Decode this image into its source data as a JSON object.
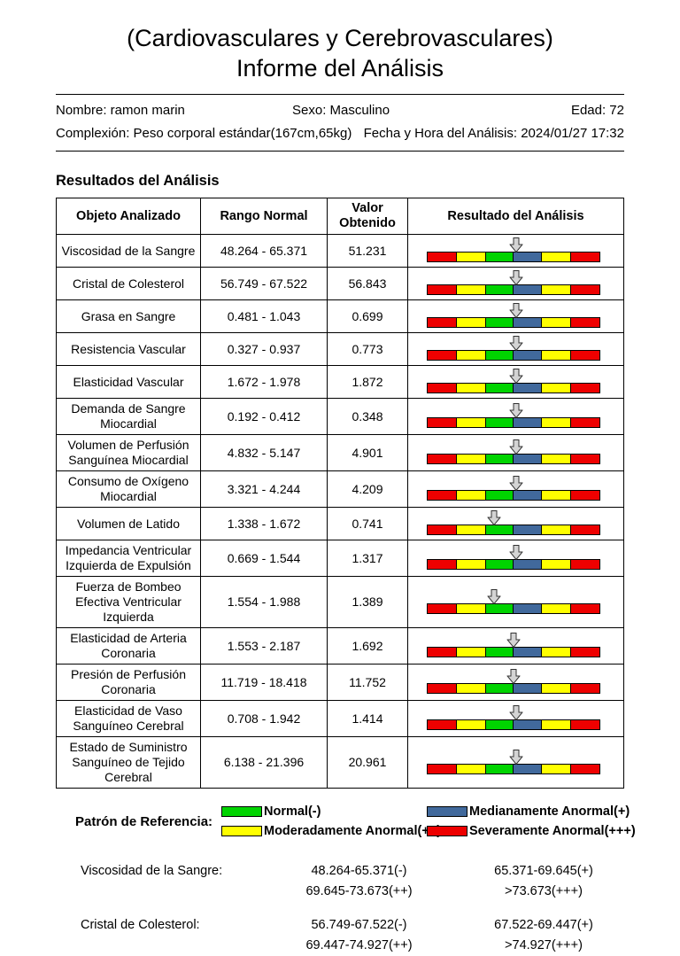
{
  "title": {
    "line1": "(Cardiovasculares y Cerebrovasculares)",
    "line2": "Informe del Análisis"
  },
  "patient": {
    "nombre": "Nombre: ramon marin",
    "sexo": "Sexo: Masculino",
    "edad": "Edad: 72",
    "complexion": "Complexión: Peso corporal estándar(167cm,65kg)",
    "fecha": "Fecha y Hora del Análisis: 2024/01/27 17:32"
  },
  "section_title": "Resultados del Análisis",
  "table": {
    "headers": [
      "Objeto Analizado",
      "Rango Normal",
      "Valor\nObtenido",
      "Resultado del Análisis"
    ],
    "bar": {
      "segments": [
        {
          "name": "severamente-anormal-izq",
          "color": "#ee0000",
          "width": 17
        },
        {
          "name": "moderadamente-anormal-izq",
          "color": "#ffff00",
          "width": 17
        },
        {
          "name": "normal",
          "color": "#00d400",
          "width": 16
        },
        {
          "name": "medianamente-anormal",
          "color": "#41699c",
          "width": 16
        },
        {
          "name": "moderadamente-anormal-der",
          "color": "#ffff00",
          "width": 17
        },
        {
          "name": "severamente-anormal-der",
          "color": "#ee0000",
          "width": 17
        }
      ]
    },
    "rows": [
      {
        "objeto": "Viscosidad de la Sangre",
        "rango": "48.264 - 65.371",
        "valor": "51.231",
        "arrow_pct": 50
      },
      {
        "objeto": "Cristal de Colesterol",
        "rango": "56.749 - 67.522",
        "valor": "56.843",
        "arrow_pct": 50
      },
      {
        "objeto": "Grasa en Sangre",
        "rango": "0.481 - 1.043",
        "valor": "0.699",
        "arrow_pct": 50
      },
      {
        "objeto": "Resistencia Vascular",
        "rango": "0.327 - 0.937",
        "valor": "0.773",
        "arrow_pct": 50
      },
      {
        "objeto": "Elasticidad Vascular",
        "rango": "1.672 - 1.978",
        "valor": "1.872",
        "arrow_pct": 50
      },
      {
        "objeto": "Demanda de Sangre Miocardial",
        "rango": "0.192 - 0.412",
        "valor": "0.348",
        "arrow_pct": 50
      },
      {
        "objeto": "Volumen de Perfusión Sanguínea Miocardial",
        "rango": "4.832 - 5.147",
        "valor": "4.901",
        "arrow_pct": 50
      },
      {
        "objeto": "Consumo de Oxígeno Miocardial",
        "rango": "3.321 - 4.244",
        "valor": "4.209",
        "arrow_pct": 50
      },
      {
        "objeto": "Volumen de Latido",
        "rango": "1.338 - 1.672",
        "valor": "0.741",
        "arrow_pct": 38
      },
      {
        "objeto": "Impedancia Ventricular Izquierda de Expulsión",
        "rango": "0.669 - 1.544",
        "valor": "1.317",
        "arrow_pct": 50
      },
      {
        "objeto": "Fuerza de Bombeo Efectiva Ventricular Izquierda",
        "rango": "1.554 - 1.988",
        "valor": "1.389",
        "arrow_pct": 38
      },
      {
        "objeto": "Elasticidad de Arteria Coronaria",
        "rango": "1.553 - 2.187",
        "valor": "1.692",
        "arrow_pct": 49
      },
      {
        "objeto": "Presión de Perfusión Coronaria",
        "rango": "11.719 - 18.418",
        "valor": "11.752",
        "arrow_pct": 49
      },
      {
        "objeto": "Elasticidad de Vaso Sanguíneo Cerebral",
        "rango": "0.708 - 1.942",
        "valor": "1.414",
        "arrow_pct": 50
      },
      {
        "objeto": "Estado de Suministro Sanguíneo de Tejido Cerebral",
        "rango": "6.138 - 21.396",
        "valor": "20.961",
        "arrow_pct": 50
      }
    ]
  },
  "legend": {
    "label": "Patrón de Referencia:",
    "items": [
      {
        "color": "#00d400",
        "text": "Normal(-)"
      },
      {
        "color": "#41699c",
        "text": "Medianamente Anormal(+)"
      },
      {
        "color": "#ffff00",
        "text": "Moderadamente Anormal(++)"
      },
      {
        "color": "#ee0000",
        "text": "Severamente Anormal(+++)"
      }
    ]
  },
  "references": [
    {
      "label": "Viscosidad de la Sangre:",
      "col1": [
        "48.264-65.371(-)",
        "69.645-73.673(++)"
      ],
      "col2": [
        "65.371-69.645(+)",
        ">73.673(+++)"
      ]
    },
    {
      "label": "Cristal de Colesterol:",
      "col1": [
        "56.749-67.522(-)",
        "69.447-74.927(++)"
      ],
      "col2": [
        "67.522-69.447(+)",
        ">74.927(+++)"
      ]
    }
  ]
}
